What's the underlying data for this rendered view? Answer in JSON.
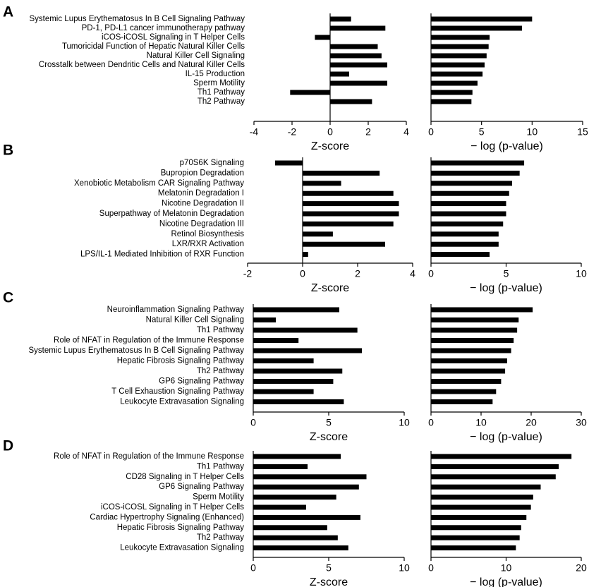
{
  "chart_data": [
    {
      "type": "hbar",
      "panel": "A",
      "color": "#000000",
      "xlabel": "Z-score",
      "categories": [
        "Systemic Lupus Erythematosus In B Cell Signaling Pathway",
        "PD-1, PD-L1 cancer immunotherapy pathway",
        "iCOS-iCOSL Signaling in T Helper Cells",
        "Tumoricidal Function of Hepatic Natural Killer Cells",
        "Natural Killer Cell Signaling",
        "Crosstalk between Dendritic Cells and Natural Killer Cells",
        "IL-15 Production",
        "Sperm Motility",
        "Th1 Pathway",
        "Th2 Pathway"
      ],
      "values": [
        1.1,
        2.9,
        -0.8,
        2.5,
        2.7,
        3.0,
        1.0,
        3.0,
        -2.1,
        2.2
      ],
      "xlim": [
        -4,
        4
      ],
      "xticks": [
        -4,
        -2,
        0,
        2,
        4
      ]
    },
    {
      "type": "hbar",
      "color": "#000000",
      "xlabel": "− log (p-value)",
      "values": [
        10.0,
        9.0,
        5.8,
        5.7,
        5.5,
        5.3,
        5.1,
        4.6,
        4.1,
        4.0
      ],
      "xlim": [
        0,
        15
      ],
      "xticks": [
        0,
        5,
        10,
        15
      ]
    },
    {
      "type": "hbar",
      "panel": "B",
      "color": "#000000",
      "xlabel": "Z-score",
      "categories": [
        "p70S6K Signaling",
        "Bupropion Degradation",
        "Xenobiotic Metabolism CAR Signaling Pathway",
        "Melatonin Degradation I",
        "Nicotine Degradation II",
        "Superpathway of Melatonin Degradation",
        "Nicotine Degradation III",
        "Retinol Biosynthesis",
        "LXR/RXR Activation",
        "LPS/IL-1 Mediated Inhibition of RXR Function"
      ],
      "values": [
        -1.0,
        2.8,
        1.4,
        3.3,
        3.5,
        3.5,
        3.3,
        1.1,
        3.0,
        0.2
      ],
      "xlim": [
        -2,
        4
      ],
      "xticks": [
        -2,
        0,
        2,
        4
      ]
    },
    {
      "type": "hbar",
      "color": "#000000",
      "xlabel": "− log (p-value)",
      "values": [
        6.2,
        5.9,
        5.4,
        5.2,
        5.0,
        5.0,
        4.8,
        4.5,
        4.5,
        3.9
      ],
      "xlim": [
        0,
        10
      ],
      "xticks": [
        0,
        5,
        10
      ]
    },
    {
      "type": "hbar",
      "panel": "C",
      "color": "#000000",
      "xlabel": "Z-score",
      "categories": [
        "Neuroinflammation Signaling Pathway",
        "Natural Killer Cell Signaling",
        "Th1 Pathway",
        "Role of NFAT in Regulation of the Immune Response",
        "Systemic Lupus Erythematosus In B Cell Signaling Pathway",
        "Hepatic Fibrosis Signaling Pathway",
        "Th2 Pathway",
        "GP6 Signaling Pathway",
        "T Cell Exhaustion Signaling Pathway",
        "Leukocyte Extravasation Signaling"
      ],
      "values": [
        5.7,
        1.5,
        6.9,
        3.0,
        7.2,
        4.0,
        5.9,
        5.3,
        4.0,
        6.0
      ],
      "xlim": [
        0,
        10
      ],
      "xticks": [
        0,
        5,
        10
      ]
    },
    {
      "type": "hbar",
      "color": "#000000",
      "xlabel": "− log (p-value)",
      "values": [
        20.3,
        17.5,
        17.2,
        16.5,
        16.0,
        15.2,
        14.8,
        14.0,
        13.0,
        12.3
      ],
      "xlim": [
        0,
        30
      ],
      "xticks": [
        0,
        10,
        20,
        30
      ]
    },
    {
      "type": "hbar",
      "panel": "D",
      "color": "#000000",
      "xlabel": "Z-score",
      "categories": [
        "Role of NFAT in Regulation of the Immune Response",
        "Th1 Pathway",
        "CD28 Signaling in T Helper Cells",
        "GP6 Signaling Pathway",
        "Sperm Motility",
        "iCOS-iCOSL Signaling in T Helper Cells",
        "Cardiac Hypertrophy Signaling (Enhanced)",
        "Hepatic Fibrosis Signaling Pathway",
        "Th2 Pathway",
        "Leukocyte Extravasation Signaling"
      ],
      "values": [
        5.8,
        3.6,
        7.5,
        7.0,
        5.5,
        3.5,
        7.1,
        4.9,
        5.6,
        6.3
      ],
      "xlim": [
        0,
        10
      ],
      "xticks": [
        0,
        5,
        10
      ]
    },
    {
      "type": "hbar",
      "color": "#000000",
      "xlabel": "− log (p-value)",
      "values": [
        18.7,
        17.0,
        16.6,
        14.6,
        13.6,
        13.3,
        12.7,
        12.0,
        11.8,
        11.3
      ],
      "xlim": [
        0,
        20
      ],
      "xticks": [
        0,
        10,
        20
      ]
    }
  ]
}
